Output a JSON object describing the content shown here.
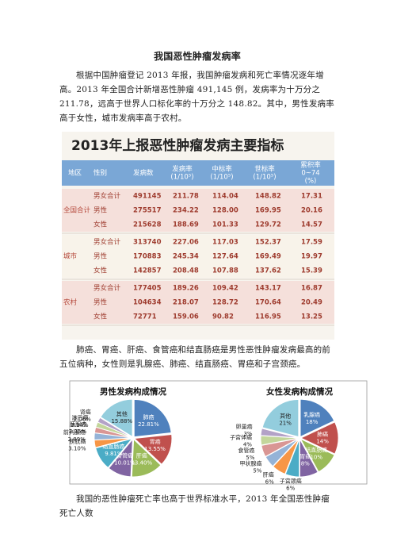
{
  "title": "我国恶性肿瘤发病率",
  "paragraphs": [
    "根据中国肿瘤登记 2013 年报，我国肿瘤发病和死亡率情况逐年增高。2013 年全国合计新增恶性肿瘤 491,145 例，发病率为十万分之 211.78，远高于世界人口标化率的十万分之 148.82。其中，男性发病率高于女性，城市发病率高于农村。",
    "肺癌、胃癌、肝癌、食管癌和结直肠癌是男性恶性肿瘤发病最高的前五位病种，女性则是乳腺癌、肺癌、结直肠癌、胃癌和子宫颈癌。",
    "我国的恶性肿瘤死亡率也高于世界标准水平，2013 年全国恶性肿瘤死亡人数"
  ],
  "table": {
    "title": "2013年上报恶性肿瘤发病主要指标",
    "headers": [
      [
        "地区"
      ],
      [
        "性别"
      ],
      [
        "发病数"
      ],
      [
        "发病率",
        "(1/10⁵)"
      ],
      [
        "中标率",
        "(1/10⁵)"
      ],
      [
        "世标率",
        "(1/10⁵)"
      ],
      [
        "累积率",
        "0~74",
        "(%)"
      ]
    ],
    "groups": [
      {
        "region": "全国合计",
        "rows": [
          [
            "男女合计",
            "491145",
            "211.78",
            "114.04",
            "148.82",
            "17.31"
          ],
          [
            "男性",
            "275517",
            "234.22",
            "128.00",
            "169.95",
            "20.16"
          ],
          [
            "女性",
            "215628",
            "188.69",
            "101.33",
            "129.72",
            "14.57"
          ]
        ]
      },
      {
        "region": "城市",
        "rows": [
          [
            "男女合计",
            "313740",
            "227.06",
            "117.03",
            "152.37",
            "17.59"
          ],
          [
            "男性",
            "170883",
            "245.34",
            "127.64",
            "169.49",
            "19.97"
          ],
          [
            "女性",
            "142857",
            "208.48",
            "107.88",
            "137.62",
            "15.39"
          ]
        ]
      },
      {
        "region": "农村",
        "rows": [
          [
            "男女合计",
            "177405",
            "189.26",
            "109.42",
            "143.17",
            "16.87"
          ],
          [
            "男性",
            "104634",
            "218.07",
            "128.72",
            "170.64",
            "20.49"
          ],
          [
            "女性",
            "72771",
            "159.06",
            "90.82",
            "116.95",
            "13.25"
          ]
        ]
      }
    ]
  },
  "chart_data": [
    {
      "type": "pie",
      "title": "男性发病构成情况",
      "categories": [
        "肺癌",
        "胃癌",
        "肝癌",
        "食管癌",
        "结直肠癌",
        "膀胱癌",
        "前列腺癌",
        "胰腺癌",
        "淋巴瘤",
        "肾癌",
        "其他"
      ],
      "values": [
        22.81,
        13.55,
        13.4,
        10.01,
        9.81,
        3.1,
        2.89,
        2.35,
        2.14,
        2.06,
        15.88
      ],
      "value_labels": [
        "22.81%",
        "13.55%",
        "13.40%",
        "10.01%",
        "9.81%",
        "3.10%",
        "2.89%",
        "2.35%",
        "2.14%",
        "2.06%",
        "15.88%"
      ],
      "colors": [
        "#4f81bd",
        "#c0504d",
        "#9bbb59",
        "#8064a2",
        "#4bacc6",
        "#f79646",
        "#95b3d7",
        "#d99694",
        "#c3d69b",
        "#b3a2c7",
        "#93cddd"
      ]
    },
    {
      "type": "pie",
      "title": "女性发病构成情况",
      "categories": [
        "乳腺癌",
        "肺癌",
        "结直肠癌",
        "胃癌",
        "子宫颈癌",
        "肝癌",
        "甲状腺癌",
        "食管癌",
        "子宫体癌",
        "卵巢癌",
        "其他"
      ],
      "values": [
        18,
        14,
        10,
        8,
        6,
        6,
        5,
        5,
        4,
        3,
        21
      ],
      "value_labels": [
        "18%",
        "14%",
        "10%",
        "8%",
        "6%",
        "6%",
        "5%",
        "5%",
        "4%",
        "3%",
        "21%"
      ],
      "colors": [
        "#4f81bd",
        "#c0504d",
        "#9bbb59",
        "#8064a2",
        "#4bacc6",
        "#f79646",
        "#95b3d7",
        "#d99694",
        "#c3d69b",
        "#b3a2c7",
        "#93cddd"
      ]
    }
  ]
}
